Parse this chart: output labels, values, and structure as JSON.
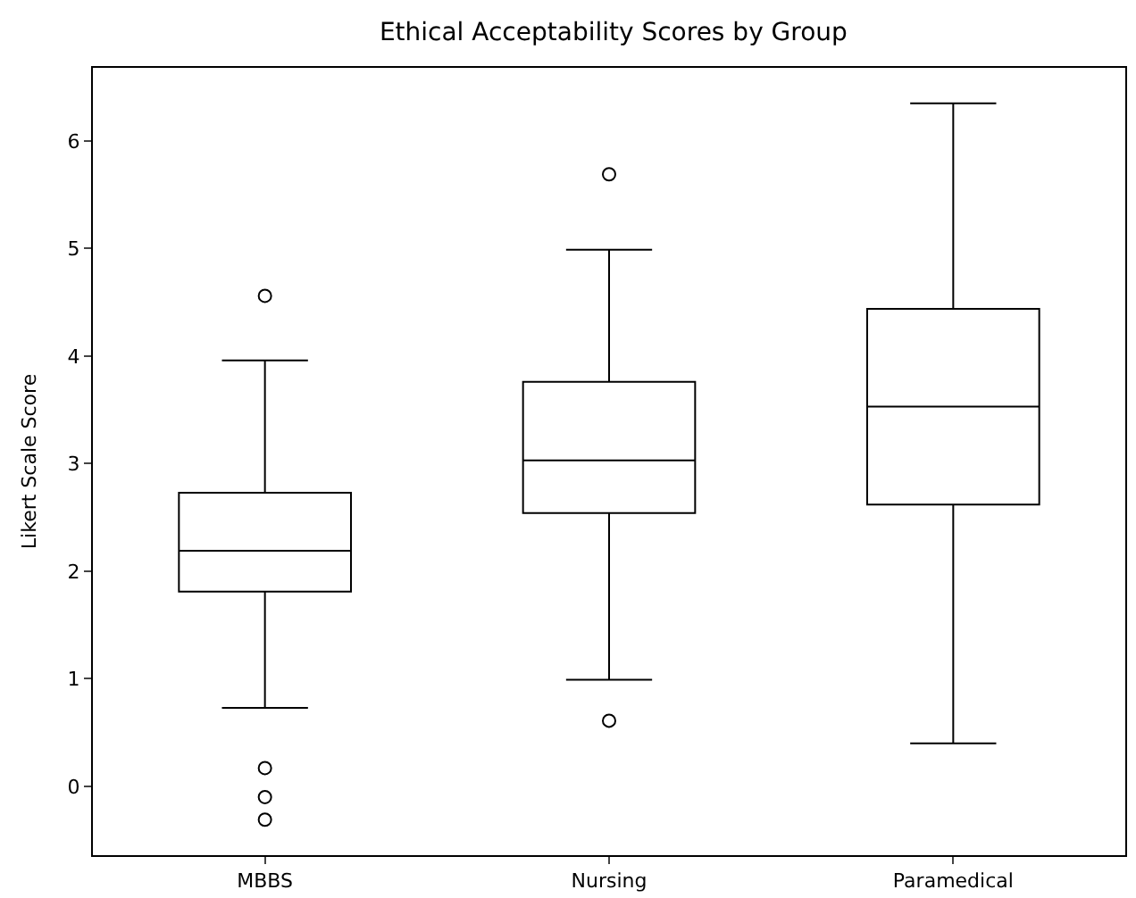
{
  "chart_data": {
    "type": "box",
    "title": "Ethical Acceptability Scores by Group",
    "ylabel": "Likert Scale Score",
    "categories": [
      "MBBS",
      "Nursing",
      "Paramedical"
    ],
    "boxes": [
      {
        "low": 0.73,
        "q1": 1.81,
        "median": 2.19,
        "q3": 2.73,
        "high": 3.96,
        "outliers": [
          4.56,
          0.17,
          -0.1,
          -0.31
        ]
      },
      {
        "low": 0.99,
        "q1": 2.54,
        "median": 3.03,
        "q3": 3.76,
        "high": 4.99,
        "outliers": [
          5.69,
          0.61
        ]
      },
      {
        "low": 0.4,
        "q1": 2.62,
        "median": 3.53,
        "q3": 4.44,
        "high": 6.35
      }
    ],
    "ylim": [
      -0.64,
      6.68
    ],
    "yticks": [
      0,
      1,
      2,
      3,
      4,
      5,
      6
    ]
  }
}
